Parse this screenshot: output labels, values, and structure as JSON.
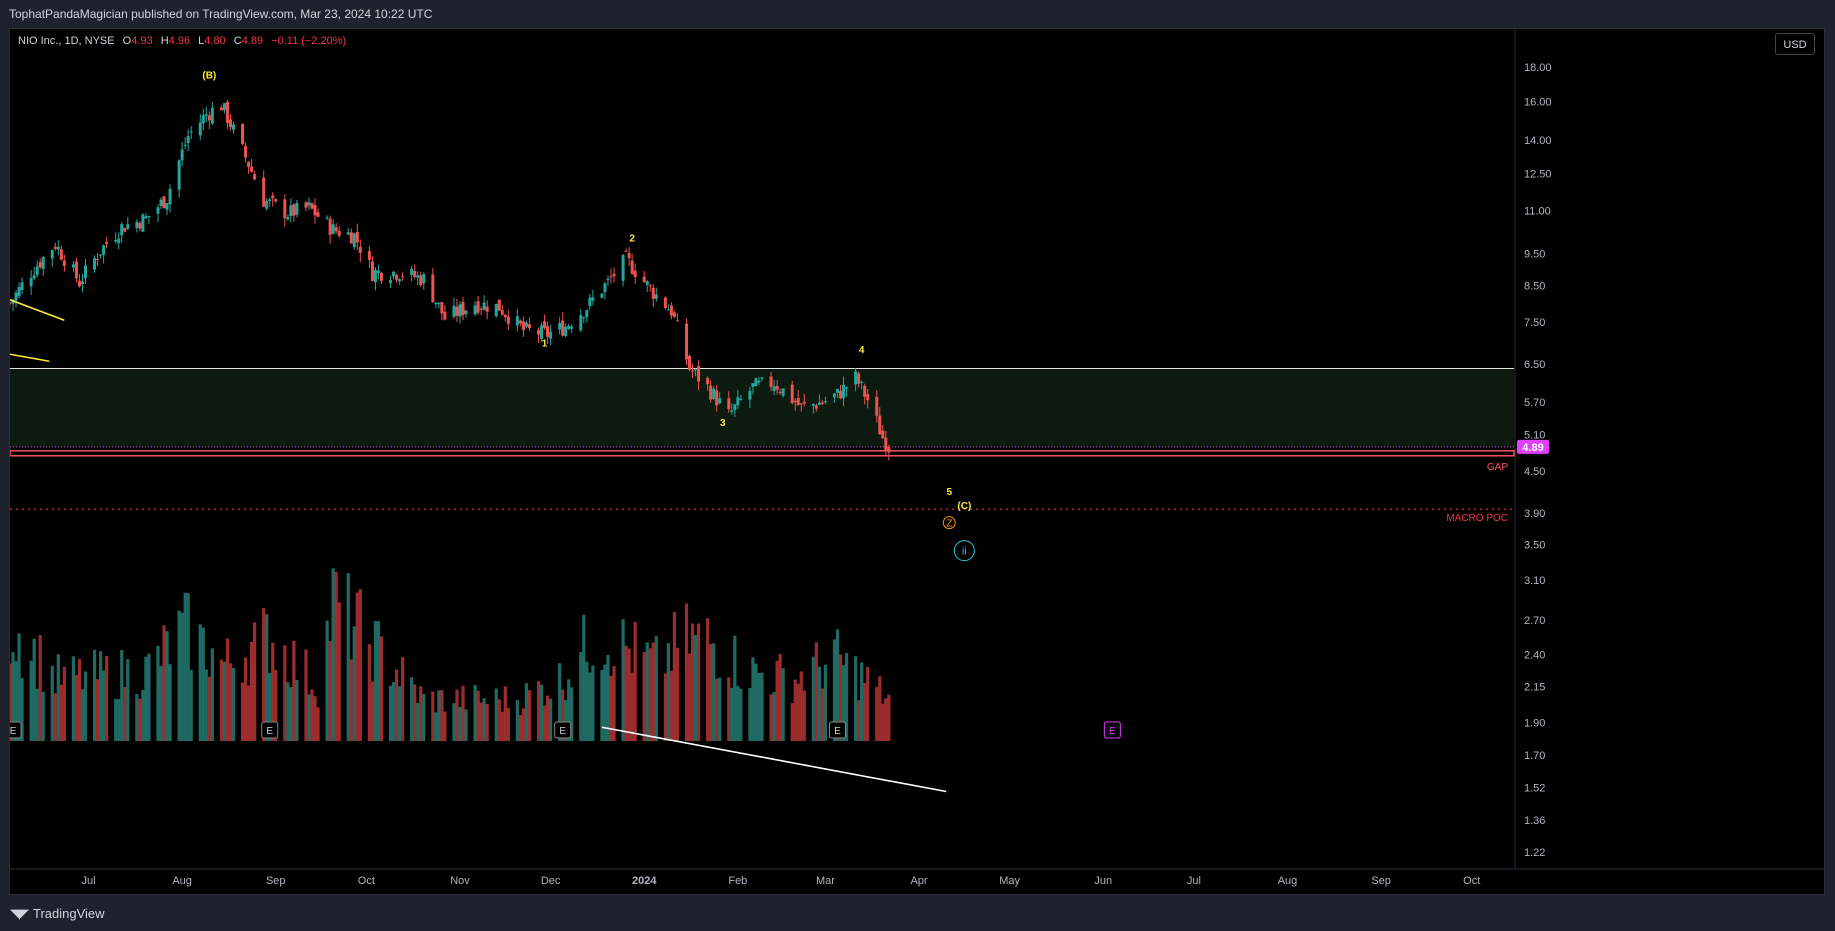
{
  "header": {
    "published_text": "TophatPandaMagician published on TradingView.com, Mar 23, 2024 10:22 UTC"
  },
  "legend": {
    "symbol": "NIO Inc., 1D, NYSE",
    "open_label": "O",
    "open": "4.93",
    "high_label": "H",
    "high": "4.96",
    "low_label": "L",
    "low": "4.80",
    "close_label": "C",
    "close": "4.89",
    "change": "−0.11 (−2.20%)"
  },
  "currency_button": "USD",
  "footer": {
    "brand": "TradingView",
    "brand_icon": "tradingview-logo-icon"
  },
  "colors": {
    "up": "#26a69a",
    "down": "#ef5350",
    "vol_up": "#1f6b63",
    "vol_down": "#9c2d2d",
    "wave": "#ffeb3b",
    "gap": "#f7525f",
    "poc": "#f23645",
    "zone": "#0d1a10",
    "last_price_bg": "#e040fb",
    "earnings": "#9c27b0"
  },
  "chart_data": {
    "type": "candlestick",
    "title": "",
    "scale": "log",
    "ylim": [
      1.15,
      20.5
    ],
    "xlim": [
      "2023-06-05",
      "2024-10-15"
    ],
    "price_ticks": [
      "18.00",
      "16.00",
      "14.00",
      "12.50",
      "11.00",
      "9.50",
      "8.50",
      "7.50",
      "6.50",
      "5.70",
      "5.10",
      "4.50",
      "3.90",
      "3.50",
      "3.10",
      "2.70",
      "2.40",
      "2.15",
      "1.90",
      "1.70",
      "1.52",
      "1.36",
      "1.22"
    ],
    "month_ticks": [
      {
        "date": "2023-07-01",
        "label": "Jul"
      },
      {
        "date": "2023-08-01",
        "label": "Aug"
      },
      {
        "date": "2023-09-01",
        "label": "Sep"
      },
      {
        "date": "2023-10-01",
        "label": "Oct"
      },
      {
        "date": "2023-11-01",
        "label": "Nov"
      },
      {
        "date": "2023-12-01",
        "label": "Dec"
      },
      {
        "date": "2024-01-01",
        "label": "2024"
      },
      {
        "date": "2024-02-01",
        "label": "Feb"
      },
      {
        "date": "2024-03-01",
        "label": "Mar"
      },
      {
        "date": "2024-04-01",
        "label": "Apr"
      },
      {
        "date": "2024-05-01",
        "label": "May"
      },
      {
        "date": "2024-06-01",
        "label": "Jun"
      },
      {
        "date": "2024-07-01",
        "label": "Jul"
      },
      {
        "date": "2024-08-01",
        "label": "Aug"
      },
      {
        "date": "2024-09-01",
        "label": "Sep"
      },
      {
        "date": "2024-10-01",
        "label": "Oct"
      }
    ],
    "price_path": [
      [
        "2023-06-05",
        8.0
      ],
      [
        "2023-06-12",
        8.9
      ],
      [
        "2023-06-20",
        9.8
      ],
      [
        "2023-06-28",
        8.6
      ],
      [
        "2023-07-05",
        9.6
      ],
      [
        "2023-07-12",
        10.4
      ],
      [
        "2023-07-20",
        10.7
      ],
      [
        "2023-07-27",
        11.5
      ],
      [
        "2023-08-03",
        14.2
      ],
      [
        "2023-08-09",
        15.3
      ],
      [
        "2023-08-14",
        15.8
      ],
      [
        "2023-08-21",
        13.5
      ],
      [
        "2023-08-28",
        11.4
      ],
      [
        "2023-09-05",
        10.9
      ],
      [
        "2023-09-12",
        11.1
      ],
      [
        "2023-09-20",
        10.3
      ],
      [
        "2023-09-27",
        10.1
      ],
      [
        "2023-10-03",
        8.9
      ],
      [
        "2023-10-12",
        8.9
      ],
      [
        "2023-10-20",
        8.7
      ],
      [
        "2023-10-27",
        7.6
      ],
      [
        "2023-11-06",
        8.0
      ],
      [
        "2023-11-14",
        7.9
      ],
      [
        "2023-11-22",
        7.3
      ],
      [
        "2023-11-30",
        7.2
      ],
      [
        "2023-12-06",
        7.4
      ],
      [
        "2023-12-13",
        7.9
      ],
      [
        "2023-12-20",
        8.6
      ],
      [
        "2023-12-26",
        9.3
      ],
      [
        "2024-01-03",
        8.4
      ],
      [
        "2024-01-10",
        7.8
      ],
      [
        "2024-01-16",
        6.4
      ],
      [
        "2024-01-22",
        6.0
      ],
      [
        "2024-01-29",
        5.45
      ],
      [
        "2024-02-06",
        6.0
      ],
      [
        "2024-02-13",
        6.1
      ],
      [
        "2024-02-22",
        5.6
      ],
      [
        "2024-02-29",
        5.7
      ],
      [
        "2024-03-05",
        5.85
      ],
      [
        "2024-03-11",
        6.2
      ],
      [
        "2024-03-15",
        5.75
      ],
      [
        "2024-03-20",
        5.05
      ],
      [
        "2024-03-22",
        4.89
      ]
    ],
    "last_price": "4.89",
    "zone": {
      "from": 4.89,
      "to": 6.4
    },
    "horizontal_lines": [
      {
        "name": "GAP",
        "price": 4.76,
        "label": "GAP"
      },
      {
        "name": "MACRO POC",
        "price": 3.95,
        "label": "MACRO POC"
      }
    ],
    "wave_labels": [
      {
        "text": "(B)",
        "date": "2023-08-10",
        "price": 17.3
      },
      {
        "text": "2",
        "date": "2023-12-28",
        "price": 9.9
      },
      {
        "text": "1",
        "date": "2023-11-29",
        "price": 6.9
      },
      {
        "text": "4",
        "date": "2024-03-13",
        "price": 6.75
      },
      {
        "text": "3",
        "date": "2024-01-27",
        "price": 5.25
      },
      {
        "text": "5",
        "date": "2024-04-11",
        "price": 4.15
      },
      {
        "text": "(C)",
        "date": "2024-04-16",
        "price": 3.95
      },
      {
        "text": "Z",
        "date": "2024-04-11",
        "price": 3.72,
        "style": "circle-orange"
      },
      {
        "text": "ii",
        "date": "2024-04-16",
        "price": 3.38,
        "style": "circle-teal"
      }
    ],
    "trendlines": [
      {
        "from": [
          "2023-06-05",
          8.1
        ],
        "to": [
          "2023-06-23",
          7.55
        ],
        "color": "#ffeb3b"
      },
      {
        "from": [
          "2023-06-05",
          6.72
        ],
        "to": [
          "2023-06-18",
          6.56
        ],
        "color": "#ffeb3b"
      },
      {
        "from": [
          "2023-12-18",
          1.87
        ],
        "to": [
          "2024-04-10",
          1.5
        ],
        "color": "#ffffff"
      }
    ],
    "earnings_markers": [
      {
        "date": "2023-06-06",
        "text": "E"
      },
      {
        "date": "2023-08-30",
        "text": "E"
      },
      {
        "date": "2023-12-05",
        "text": "E"
      },
      {
        "date": "2024-03-05",
        "text": "E"
      },
      {
        "date": "2024-06-04",
        "text": "E",
        "upcoming": true
      }
    ],
    "volume_peaks": [
      [
        "2023-06-05",
        0.85
      ],
      [
        "2023-06-20",
        0.45
      ],
      [
        "2023-07-20",
        0.5
      ],
      [
        "2023-08-02",
        0.8
      ],
      [
        "2023-08-15",
        0.55
      ],
      [
        "2023-08-30",
        0.75
      ],
      [
        "2023-09-15",
        0.4
      ],
      [
        "2023-09-20",
        1.0
      ],
      [
        "2023-10-20",
        0.3
      ],
      [
        "2023-11-20",
        0.3
      ],
      [
        "2023-12-05",
        0.45
      ],
      [
        "2023-12-15",
        0.75
      ],
      [
        "2023-12-22",
        0.72
      ],
      [
        "2024-01-05",
        0.55
      ],
      [
        "2024-01-14",
        0.73
      ],
      [
        "2024-01-22",
        0.73
      ],
      [
        "2024-02-05",
        0.5
      ],
      [
        "2024-02-20",
        0.45
      ],
      [
        "2024-03-04",
        0.6
      ],
      [
        "2024-03-14",
        0.45
      ],
      [
        "2024-03-22",
        0.3
      ]
    ]
  }
}
